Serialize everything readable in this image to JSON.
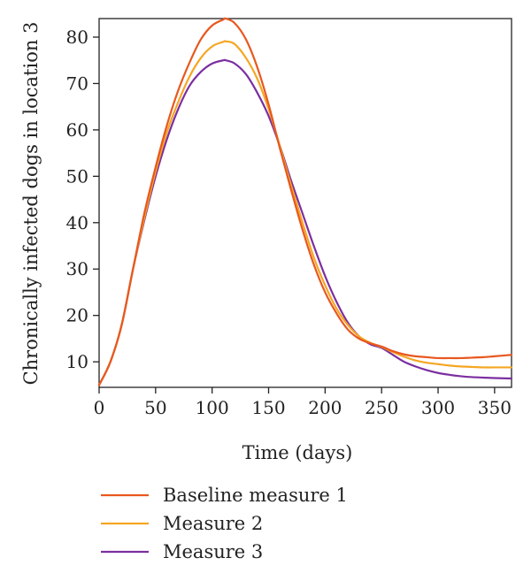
{
  "chart_data": {
    "type": "line",
    "title": "",
    "xlabel": "Time (days)",
    "ylabel": "Chronically infected dogs in location 3",
    "xlim": [
      0,
      365
    ],
    "ylim": [
      4.5,
      84
    ],
    "xticks": [
      0,
      50,
      100,
      150,
      200,
      250,
      300,
      350
    ],
    "yticks": [
      10,
      20,
      30,
      40,
      50,
      60,
      70,
      80
    ],
    "grid": false,
    "legend_position": "bottom-left",
    "series": [
      {
        "name": "Baseline measure 1",
        "color": "#e8581f",
        "x": [
          0,
          10,
          20,
          30,
          40,
          50,
          60,
          70,
          80,
          90,
          100,
          110,
          112,
          120,
          130,
          140,
          150,
          160,
          170,
          180,
          190,
          200,
          210,
          220,
          230,
          240,
          250,
          260,
          270,
          280,
          290,
          300,
          310,
          320,
          330,
          340,
          350,
          365
        ],
        "y": [
          5,
          10,
          18,
          30,
          42,
          52,
          61,
          68.5,
          74.5,
          79.5,
          82.5,
          83.8,
          84,
          83,
          79.5,
          73.5,
          65.5,
          56,
          47,
          38.5,
          31,
          25,
          20.5,
          17,
          15,
          14,
          13.3,
          12.3,
          11.6,
          11.2,
          11,
          10.8,
          10.8,
          10.8,
          10.9,
          11,
          11.2,
          11.5
        ]
      },
      {
        "name": "Measure 2",
        "color": "#f5a623",
        "x": [
          0,
          10,
          20,
          30,
          40,
          50,
          60,
          70,
          80,
          90,
          100,
          110,
          112,
          120,
          130,
          140,
          150,
          160,
          170,
          180,
          190,
          200,
          210,
          220,
          230,
          240,
          250,
          260,
          270,
          280,
          290,
          300,
          310,
          320,
          330,
          340,
          350,
          365
        ],
        "y": [
          5,
          10,
          18,
          30,
          41,
          51,
          59.5,
          66,
          71.5,
          75.5,
          78,
          79,
          79.1,
          78.5,
          75.5,
          71,
          64.5,
          56.5,
          48,
          40,
          32.5,
          26.5,
          21.5,
          18,
          15.5,
          14.1,
          13.2,
          12.1,
          11.1,
          10.3,
          9.8,
          9.5,
          9.2,
          9,
          8.9,
          8.8,
          8.8,
          8.8
        ]
      },
      {
        "name": "Measure 3",
        "color": "#7b2fa0",
        "x": [
          0,
          10,
          20,
          30,
          40,
          50,
          60,
          70,
          80,
          90,
          100,
          110,
          112,
          120,
          130,
          140,
          150,
          160,
          170,
          180,
          190,
          200,
          210,
          220,
          230,
          240,
          250,
          260,
          270,
          280,
          290,
          300,
          310,
          320,
          330,
          340,
          350,
          365
        ],
        "y": [
          5,
          10,
          18,
          30,
          40.5,
          50,
          58,
          64.5,
          69.5,
          72.5,
          74.3,
          75,
          75,
          74.3,
          72,
          68,
          63,
          56.5,
          49,
          42,
          35,
          28.5,
          23,
          18.5,
          15.5,
          13.8,
          13,
          11.5,
          10,
          9,
          8.2,
          7.6,
          7.2,
          6.9,
          6.7,
          6.6,
          6.5,
          6.4
        ]
      }
    ]
  }
}
